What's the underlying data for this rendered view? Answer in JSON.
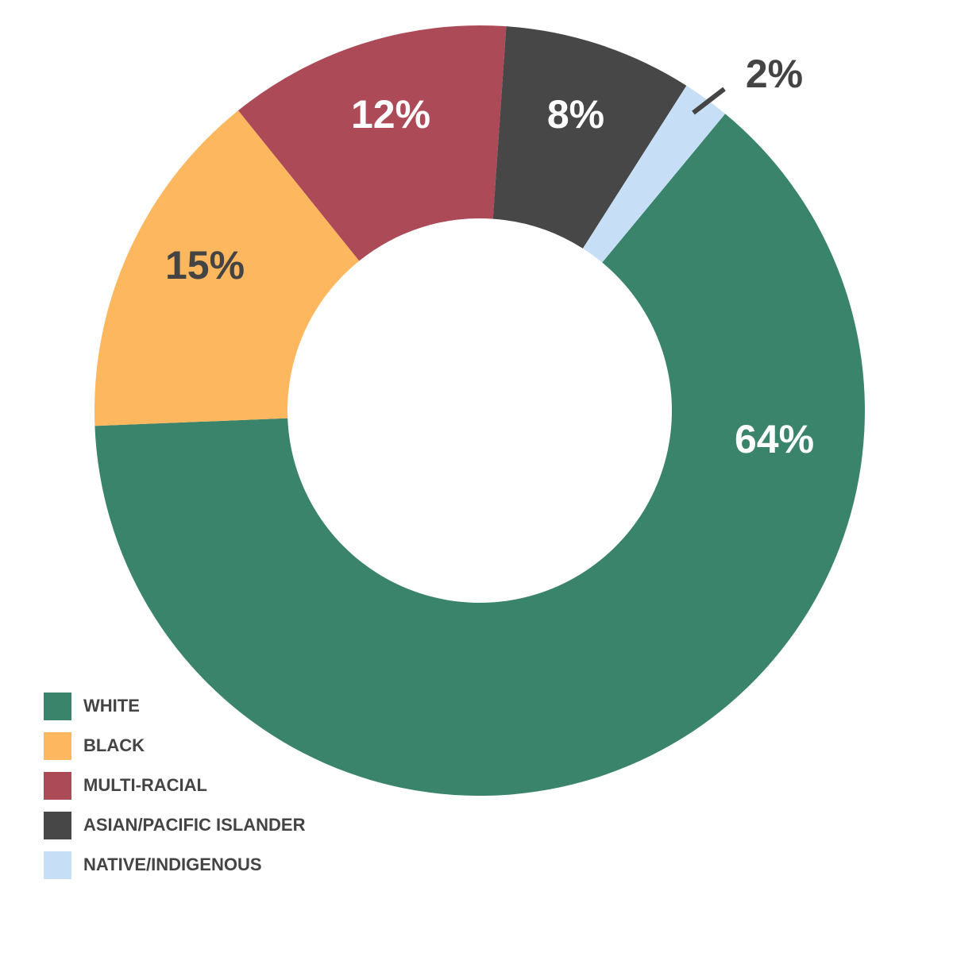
{
  "chart_data": {
    "type": "donut",
    "categories": [
      "WHITE",
      "BLACK",
      "MULTI-RACIAL",
      "ASIAN/PACIFIC ISLANDER",
      "NATIVE/INDIGENOUS"
    ],
    "values": [
      64,
      15,
      12,
      8,
      2
    ],
    "value_labels": [
      "64%",
      "15%",
      "12%",
      "8%",
      "2%"
    ],
    "colors": [
      "#3a846b",
      "#fdb75e",
      "#ad4a58",
      "#474747",
      "#c6dff7"
    ],
    "legend": "bottom-left"
  }
}
